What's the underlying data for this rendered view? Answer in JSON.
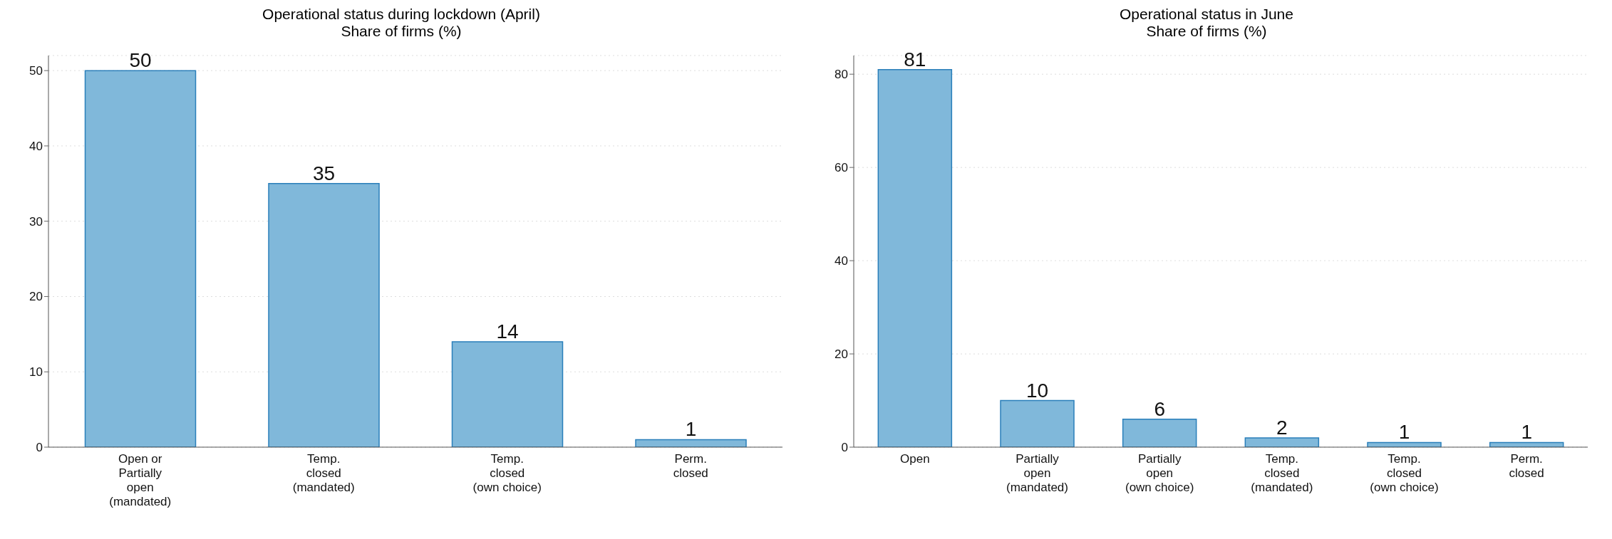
{
  "chart_data": [
    {
      "type": "bar",
      "title": "Operational status during lockdown (April)\nShare of firms (%)",
      "categories": [
        "Open or\nPartially\nopen\n(mandated)",
        "Temp.\nclosed\n(mandated)",
        "Temp.\nclosed\n(own choice)",
        "Perm.\nclosed"
      ],
      "values": [
        50,
        35,
        14,
        1
      ],
      "color": "#80b8da",
      "ylim": [
        0,
        52
      ],
      "yticks": [
        0,
        10,
        20,
        30,
        40,
        50
      ],
      "grid": "y",
      "data_labels": true
    },
    {
      "type": "bar",
      "title": "Operational status in June\nShare of firms (%)",
      "categories": [
        "Open",
        "Partially\nopen\n(mandated)",
        "Partially\nopen\n(own choice)",
        "Temp.\nclosed\n(mandated)",
        "Temp.\nclosed\n(own choice)",
        "Perm.\nclosed"
      ],
      "values": [
        81,
        10,
        6,
        2,
        1,
        1
      ],
      "color": "#80b8da",
      "ylim": [
        0,
        84
      ],
      "yticks": [
        0,
        20,
        40,
        60,
        80
      ],
      "grid": "y",
      "data_labels": true
    }
  ]
}
